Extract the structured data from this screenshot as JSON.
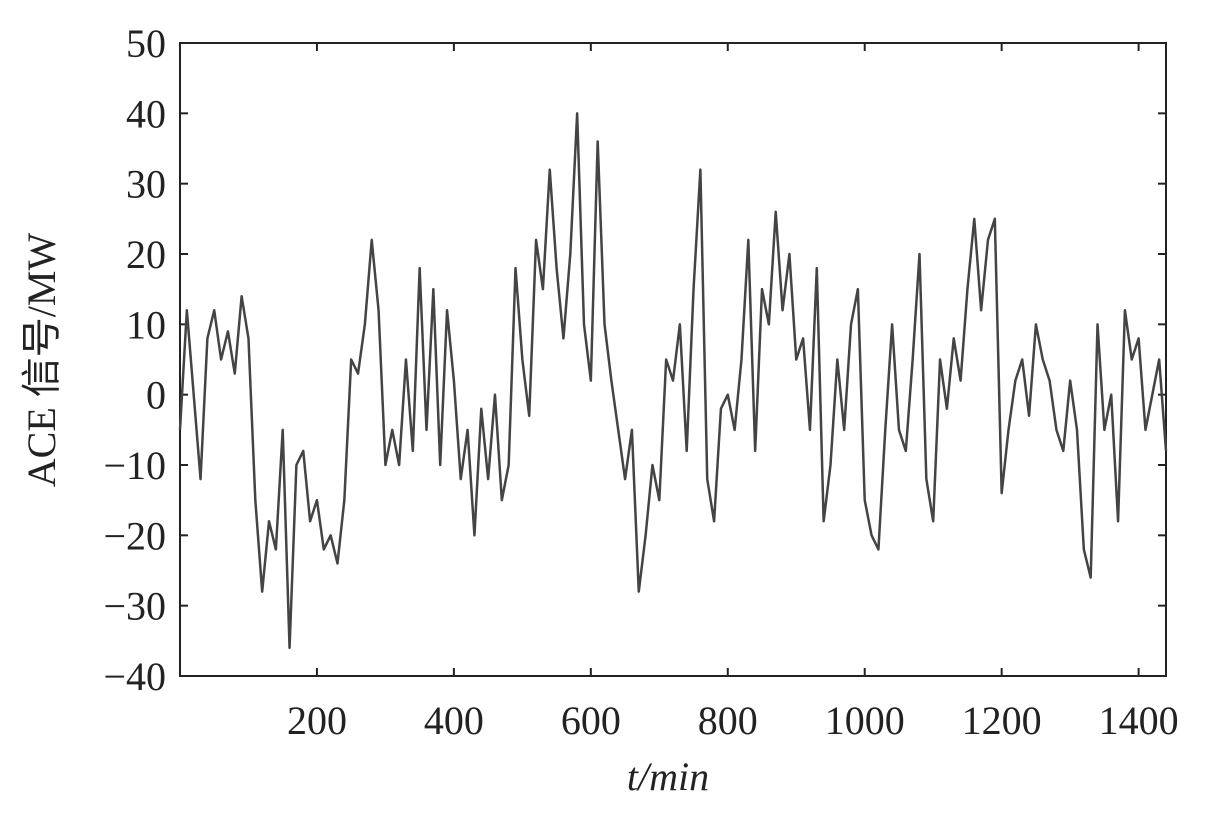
{
  "chart_data": {
    "type": "line",
    "xlabel": "t/min",
    "ylabel": "ACE 信号/MW",
    "xlim": [
      0,
      1440
    ],
    "ylim": [
      -40,
      50
    ],
    "xticks": [
      200,
      400,
      600,
      800,
      1000,
      1200,
      1400
    ],
    "yticks": [
      {
        "value": -40,
        "label": "−40"
      },
      {
        "value": -30,
        "label": "−30"
      },
      {
        "value": -20,
        "label": "−20"
      },
      {
        "value": -10,
        "label": "−10"
      },
      0,
      10,
      20,
      30,
      40,
      50
    ],
    "x": [
      0,
      10,
      20,
      30,
      40,
      50,
      60,
      70,
      80,
      90,
      100,
      110,
      120,
      130,
      140,
      150,
      160,
      170,
      180,
      190,
      200,
      210,
      220,
      230,
      240,
      250,
      260,
      270,
      280,
      290,
      300,
      310,
      320,
      330,
      340,
      350,
      360,
      370,
      380,
      390,
      400,
      410,
      420,
      430,
      440,
      450,
      460,
      470,
      480,
      490,
      500,
      510,
      520,
      530,
      540,
      550,
      560,
      570,
      580,
      590,
      600,
      610,
      620,
      630,
      640,
      650,
      660,
      670,
      680,
      690,
      700,
      710,
      720,
      730,
      740,
      750,
      760,
      770,
      780,
      790,
      800,
      810,
      820,
      830,
      840,
      850,
      860,
      870,
      880,
      890,
      900,
      910,
      920,
      930,
      940,
      950,
      960,
      970,
      980,
      990,
      1000,
      1010,
      1020,
      1030,
      1040,
      1050,
      1060,
      1070,
      1080,
      1090,
      1100,
      1110,
      1120,
      1130,
      1140,
      1150,
      1160,
      1170,
      1180,
      1190,
      1200,
      1210,
      1220,
      1230,
      1240,
      1250,
      1260,
      1270,
      1280,
      1290,
      1300,
      1310,
      1320,
      1330,
      1340,
      1350,
      1360,
      1370,
      1380,
      1390,
      1400,
      1410,
      1420,
      1430,
      1440
    ],
    "series": [
      {
        "color": "#444444",
        "values": [
          -5,
          12,
          0,
          -12,
          8,
          12,
          5,
          9,
          3,
          14,
          8,
          -15,
          -28,
          -18,
          -22,
          -5,
          -36,
          -10,
          -8,
          -18,
          -15,
          -22,
          -20,
          -24,
          -15,
          5,
          3,
          10,
          22,
          12,
          -10,
          -5,
          -10,
          5,
          -8,
          18,
          -5,
          15,
          -10,
          12,
          2,
          -12,
          -5,
          -20,
          -2,
          -12,
          0,
          -15,
          -10,
          18,
          5,
          -3,
          22,
          15,
          32,
          18,
          8,
          20,
          40,
          10,
          2,
          36,
          10,
          2,
          -5,
          -12,
          -5,
          -28,
          -20,
          -10,
          -15,
          5,
          2,
          10,
          -8,
          15,
          32,
          -12,
          -18,
          -2,
          0,
          -5,
          5,
          22,
          -8,
          15,
          10,
          26,
          12,
          20,
          5,
          8,
          -5,
          18,
          -18,
          -10,
          5,
          -5,
          10,
          15,
          -15,
          -20,
          -22,
          -5,
          10,
          -5,
          -8,
          5,
          20,
          -12,
          -18,
          5,
          -2,
          8,
          2,
          15,
          25,
          12,
          22,
          25,
          -14,
          -5,
          2,
          5,
          -3,
          10,
          5,
          2,
          -5,
          -8,
          2,
          -5,
          -22,
          -26,
          10,
          -5,
          0,
          -18,
          12,
          5,
          8,
          -5,
          0,
          5,
          -8
        ]
      }
    ]
  }
}
